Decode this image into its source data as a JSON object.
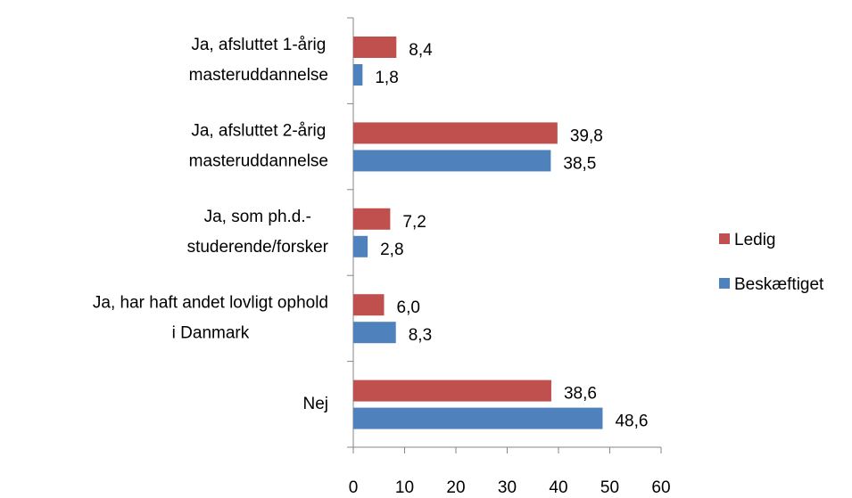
{
  "chart_data": {
    "type": "bar",
    "orientation": "horizontal",
    "categories": [
      [
        "Ja, afsluttet 1-årig",
        "masteruddannelse"
      ],
      [
        "Ja, afsluttet 2-årig",
        "masteruddannelse"
      ],
      [
        "Ja, som ph.d.-",
        "studerende/forsker"
      ],
      [
        "Ja, har haft andet lovligt ophold",
        "i Danmark"
      ],
      [
        "Nej"
      ]
    ],
    "series": [
      {
        "name": "Ledig",
        "color": "#c0504d",
        "values": [
          8.4,
          39.8,
          7.2,
          6.0,
          38.6
        ],
        "value_labels": [
          "8,4",
          "39,8",
          "7,2",
          "6,0",
          "38,6"
        ]
      },
      {
        "name": "Beskæftiget",
        "color": "#4f81bd",
        "values": [
          1.8,
          38.5,
          2.8,
          8.3,
          48.6
        ],
        "value_labels": [
          "1,8",
          "38,5",
          "2,8",
          "8,3",
          "48,6"
        ]
      }
    ],
    "xlim": [
      0,
      60
    ],
    "xticks": [
      0,
      10,
      20,
      30,
      40,
      50,
      60
    ],
    "legend": "right"
  }
}
